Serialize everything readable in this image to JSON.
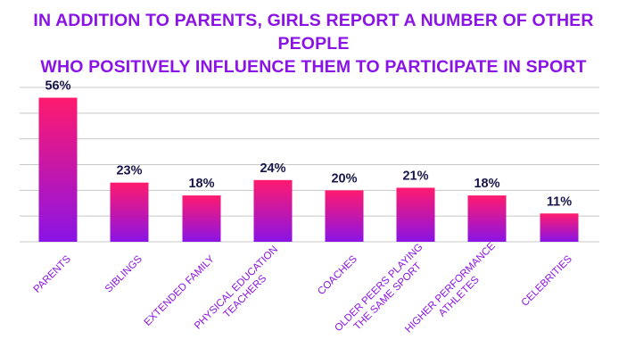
{
  "title_lines": [
    "IN ADDITION TO PARENTS, GIRLS REPORT A NUMBER OF OTHER PEOPLE",
    "WHO POSITIVELY INFLUENCE THEM TO PARTICIPATE IN SPORT"
  ],
  "colors": {
    "title": "#8a14e6",
    "bar_top": "#ff1a6e",
    "bar_bottom": "#8a14e6",
    "value_label": "#16164a",
    "tick_label": "#8a14e6",
    "grid": "#c8c8c8"
  },
  "chart_data": {
    "type": "bar",
    "title": "IN ADDITION TO PARENTS, GIRLS REPORT A NUMBER OF OTHER PEOPLE WHO POSITIVELY INFLUENCE THEM TO PARTICIPATE IN SPORT",
    "xlabel": "",
    "ylabel": "",
    "ylim": [
      0,
      60
    ],
    "grid": true,
    "categories": [
      [
        "PARENTS"
      ],
      [
        "SIBLINGS"
      ],
      [
        "EXTENDED FAMILY"
      ],
      [
        "PHYSICAL EDUCATION",
        "TEACHERS"
      ],
      [
        "COACHES"
      ],
      [
        "OLDER PEERS PLAYING",
        "THE SAME SPORT"
      ],
      [
        "HIGHER PERFORMANCE",
        "ATHLETES"
      ],
      [
        "CELEBRITIES"
      ]
    ],
    "values": [
      56,
      23,
      18,
      24,
      20,
      21,
      18,
      11
    ],
    "value_labels": [
      "56%",
      "23%",
      "18%",
      "24%",
      "20%",
      "21%",
      "18%",
      "11%"
    ],
    "gridlines": [
      0,
      10,
      20,
      30,
      40,
      50,
      60
    ]
  }
}
